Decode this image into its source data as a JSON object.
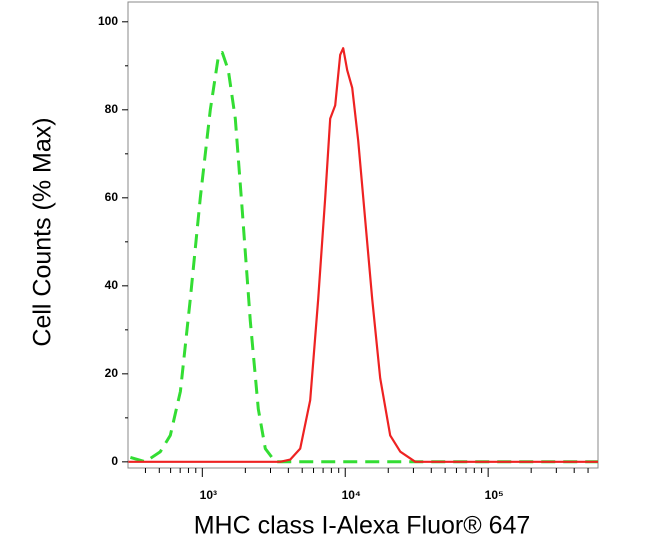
{
  "chart_data": {
    "type": "line",
    "xlabel": "MHC class I-Alexa Fluor® 647",
    "ylabel": "Cell Counts (% Max)",
    "xscale": "log",
    "xlim": [
      302,
      587000
    ],
    "ylim": [
      -1.4,
      104.5
    ],
    "xticks": [
      {
        "value": 1000,
        "label": "10³"
      },
      {
        "value": 10000,
        "label": "10⁴"
      },
      {
        "value": 100000,
        "label": "10⁵"
      }
    ],
    "minor_xticks": [
      400,
      500,
      600,
      700,
      800,
      900,
      2000,
      3000,
      4000,
      5000,
      6000,
      7000,
      8000,
      9000,
      20000,
      30000,
      40000,
      50000,
      60000,
      70000,
      80000,
      90000,
      200000,
      300000,
      400000,
      500000
    ],
    "yticks": [
      0,
      20,
      40,
      60,
      80,
      100
    ],
    "minor_yticks": [
      10,
      30,
      50,
      70,
      90
    ],
    "series": [
      {
        "color": "#33dd33",
        "dashed": true,
        "x": [
          314,
          399,
          508,
          597,
          702,
          824,
          968,
          1138,
          1294,
          1380,
          1520,
          1702,
          1905,
          2167,
          2464,
          2759,
          3238,
          587000
        ],
        "values": [
          1,
          0,
          2.3,
          6,
          16,
          37,
          60,
          80,
          92,
          93,
          89,
          78,
          57,
          32,
          12,
          3,
          0,
          0
        ]
      },
      {
        "color": "#ee2222",
        "dashed": false,
        "x": [
          304,
          3508,
          4121,
          4842,
          5689,
          6471,
          7244,
          7852,
          8511,
          9226,
          9683,
          10330,
          11190,
          12330,
          13800,
          15450,
          17580,
          20650,
          24270,
          30900,
          587000
        ],
        "values": [
          0,
          0,
          0.5,
          3,
          14,
          37,
          60,
          78,
          81,
          92.5,
          94,
          89,
          85,
          73,
          55,
          37,
          19,
          6,
          2.3,
          0,
          0
        ]
      }
    ]
  }
}
